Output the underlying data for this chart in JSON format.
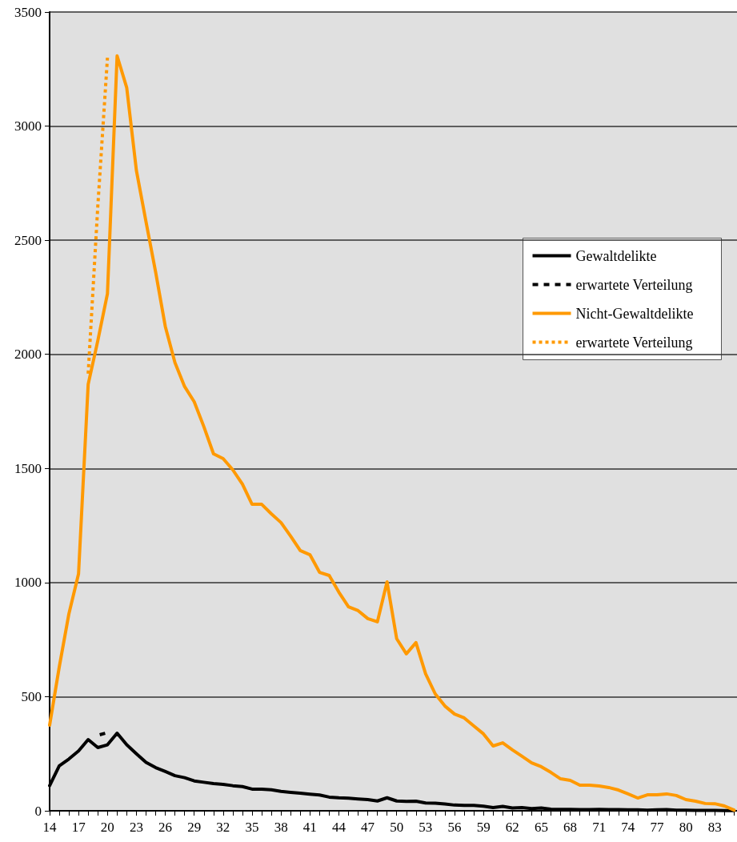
{
  "chart_data": {
    "type": "line",
    "xlim": [
      14,
      85.3
    ],
    "xticks": [
      14,
      {
        "value": 15,
        "label": null
      },
      {
        "value": 16,
        "label": null
      },
      17,
      {
        "value": 18,
        "label": null
      },
      {
        "value": 19,
        "label": null
      },
      20,
      {
        "value": 21,
        "label": null
      },
      {
        "value": 22,
        "label": null
      },
      23,
      {
        "value": 24,
        "label": null
      },
      {
        "value": 25,
        "label": null
      },
      26,
      {
        "value": 27,
        "label": null
      },
      {
        "value": 28,
        "label": null
      },
      29,
      {
        "value": 30,
        "label": null
      },
      {
        "value": 31,
        "label": null
      },
      32,
      {
        "value": 33,
        "label": null
      },
      {
        "value": 34,
        "label": null
      },
      35,
      {
        "value": 36,
        "label": null
      },
      {
        "value": 37,
        "label": null
      },
      38,
      {
        "value": 39,
        "label": null
      },
      {
        "value": 40,
        "label": null
      },
      41,
      {
        "value": 42,
        "label": null
      },
      {
        "value": 43,
        "label": null
      },
      44,
      {
        "value": 45,
        "label": null
      },
      {
        "value": 46,
        "label": null
      },
      47,
      {
        "value": 48,
        "label": null
      },
      {
        "value": 49,
        "label": null
      },
      50,
      {
        "value": 51,
        "label": null
      },
      {
        "value": 52,
        "label": null
      },
      53,
      {
        "value": 54,
        "label": null
      },
      {
        "value": 55,
        "label": null
      },
      56,
      {
        "value": 57,
        "label": null
      },
      {
        "value": 58,
        "label": null
      },
      59,
      {
        "value": 60,
        "label": null
      },
      {
        "value": 61,
        "label": null
      },
      62,
      {
        "value": 63,
        "label": null
      },
      {
        "value": 64,
        "label": null
      },
      65,
      {
        "value": 66,
        "label": null
      },
      {
        "value": 67,
        "label": null
      },
      68,
      {
        "value": 69,
        "label": null
      },
      {
        "value": 70,
        "label": null
      },
      71,
      {
        "value": 72,
        "label": null
      },
      {
        "value": 73,
        "label": null
      },
      74,
      {
        "value": 75,
        "label": null
      },
      {
        "value": 76,
        "label": null
      },
      77,
      {
        "value": 78,
        "label": null
      },
      {
        "value": 79,
        "label": null
      },
      80,
      {
        "value": 81,
        "label": null
      },
      {
        "value": 82,
        "label": null
      },
      83,
      {
        "value": 84,
        "label": null
      },
      {
        "value": 85,
        "label": null
      }
    ],
    "ylim": [
      0,
      3500
    ],
    "yticks": [
      0,
      500,
      1000,
      1500,
      2000,
      2500,
      3000,
      3500
    ],
    "grid": "y",
    "legend": "right",
    "marker": "none",
    "series": [
      {
        "name": "Gewaltdelikte",
        "color": "#000000",
        "line_style": "solid",
        "x": [
          14,
          15,
          16,
          17,
          18,
          19,
          20,
          21,
          22,
          23,
          24,
          25,
          26,
          27,
          28,
          29,
          30,
          31,
          32,
          33,
          34,
          35,
          36,
          37,
          38,
          39,
          40,
          41,
          42,
          43,
          44,
          45,
          46,
          47,
          48,
          49,
          50,
          51,
          52,
          53,
          54,
          55,
          56,
          57,
          58,
          59,
          60,
          61,
          62,
          63,
          64,
          65,
          66,
          67,
          68,
          69,
          70,
          71,
          72,
          73,
          74,
          75,
          76,
          77,
          78,
          79,
          80,
          81,
          82,
          83,
          84,
          85
        ],
        "values": [
          110,
          197,
          227,
          262,
          312,
          277,
          289,
          340,
          289,
          250,
          212,
          189,
          172,
          154,
          145,
          131,
          125,
          119,
          116,
          110,
          106,
          95,
          95,
          92,
          85,
          81,
          77,
          73,
          69,
          60,
          57,
          55,
          52,
          49,
          43,
          57,
          43,
          41,
          42,
          34,
          33,
          30,
          25,
          24,
          24,
          20,
          14,
          19,
          12,
          14,
          10,
          12,
          7,
          6,
          6,
          5,
          5,
          6,
          5,
          5,
          4,
          4,
          3,
          4,
          5,
          3,
          3,
          2,
          2,
          2,
          1,
          1
        ]
      },
      {
        "name": "erwartete Verteilung",
        "color": "#000000",
        "line_style": "dashed",
        "x": [
          19.2,
          19.8
        ],
        "values": [
          333,
          340
        ]
      },
      {
        "name": "Nicht-Gewaltdelikte",
        "color": "#ff9900",
        "line_style": "solid",
        "x": [
          14,
          15,
          16,
          17,
          18,
          19,
          20,
          21,
          22,
          23,
          24,
          25,
          26,
          27,
          28,
          29,
          30,
          31,
          32,
          33,
          34,
          35,
          36,
          37,
          38,
          39,
          40,
          41,
          42,
          43,
          44,
          45,
          46,
          47,
          48,
          49,
          50,
          51,
          52,
          53,
          54,
          55,
          56,
          57,
          58,
          59,
          60,
          61,
          62,
          63,
          64,
          65,
          66,
          67,
          68,
          69,
          70,
          71,
          72,
          73,
          74,
          75,
          76,
          77,
          78,
          79,
          80,
          81,
          82,
          83,
          84,
          85
        ],
        "values": [
          375,
          630,
          863,
          1038,
          1869,
          2060,
          2266,
          3308,
          3168,
          2806,
          2581,
          2360,
          2122,
          1964,
          1859,
          1792,
          1683,
          1564,
          1543,
          1494,
          1431,
          1343,
          1343,
          1301,
          1263,
          1203,
          1140,
          1122,
          1045,
          1031,
          958,
          894,
          877,
          842,
          828,
          1003,
          754,
          688,
          737,
          600,
          512,
          459,
          424,
          407,
          372,
          337,
          284,
          298,
          267,
          239,
          210,
          193,
          168,
          140,
          133,
          112,
          112,
          109,
          102,
          91,
          74,
          56,
          70,
          70,
          74,
          67,
          49,
          42,
          32,
          31,
          21,
          3
        ]
      },
      {
        "name": "erwartete Verteilung",
        "color": "#ff9900",
        "line_style": "dotted",
        "x": [
          18,
          19,
          20
        ],
        "values": [
          1915,
          2650,
          3300
        ]
      }
    ]
  }
}
